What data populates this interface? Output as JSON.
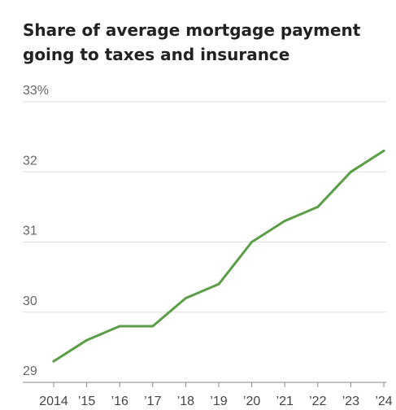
{
  "chart_data": {
    "type": "line",
    "title": "Share of average mortgage payment going to taxes and insurance",
    "xlabel": "",
    "ylabel": "",
    "x": [
      2014,
      2015,
      2016,
      2017,
      2018,
      2019,
      2020,
      2021,
      2022,
      2023,
      2024
    ],
    "x_tick_labels": [
      "2014",
      "’15",
      "’16",
      "’17",
      "’18",
      "’19",
      "’20",
      "’21",
      "’22",
      "’23",
      "’24"
    ],
    "series": [
      {
        "values": [
          29.3,
          29.6,
          29.8,
          29.8,
          30.2,
          30.4,
          31.0,
          31.3,
          31.5,
          32.0,
          32.3
        ]
      }
    ],
    "ylim": [
      29,
      33
    ],
    "y_ticks": [
      29,
      30,
      31,
      32,
      33
    ],
    "y_tick_labels": [
      "29",
      "30",
      "31",
      "32",
      "33%"
    ],
    "grid": true,
    "legend": "none",
    "colors": {
      "line": "#5a9e47",
      "grid": "#dddddd",
      "axis": "#888888"
    }
  }
}
